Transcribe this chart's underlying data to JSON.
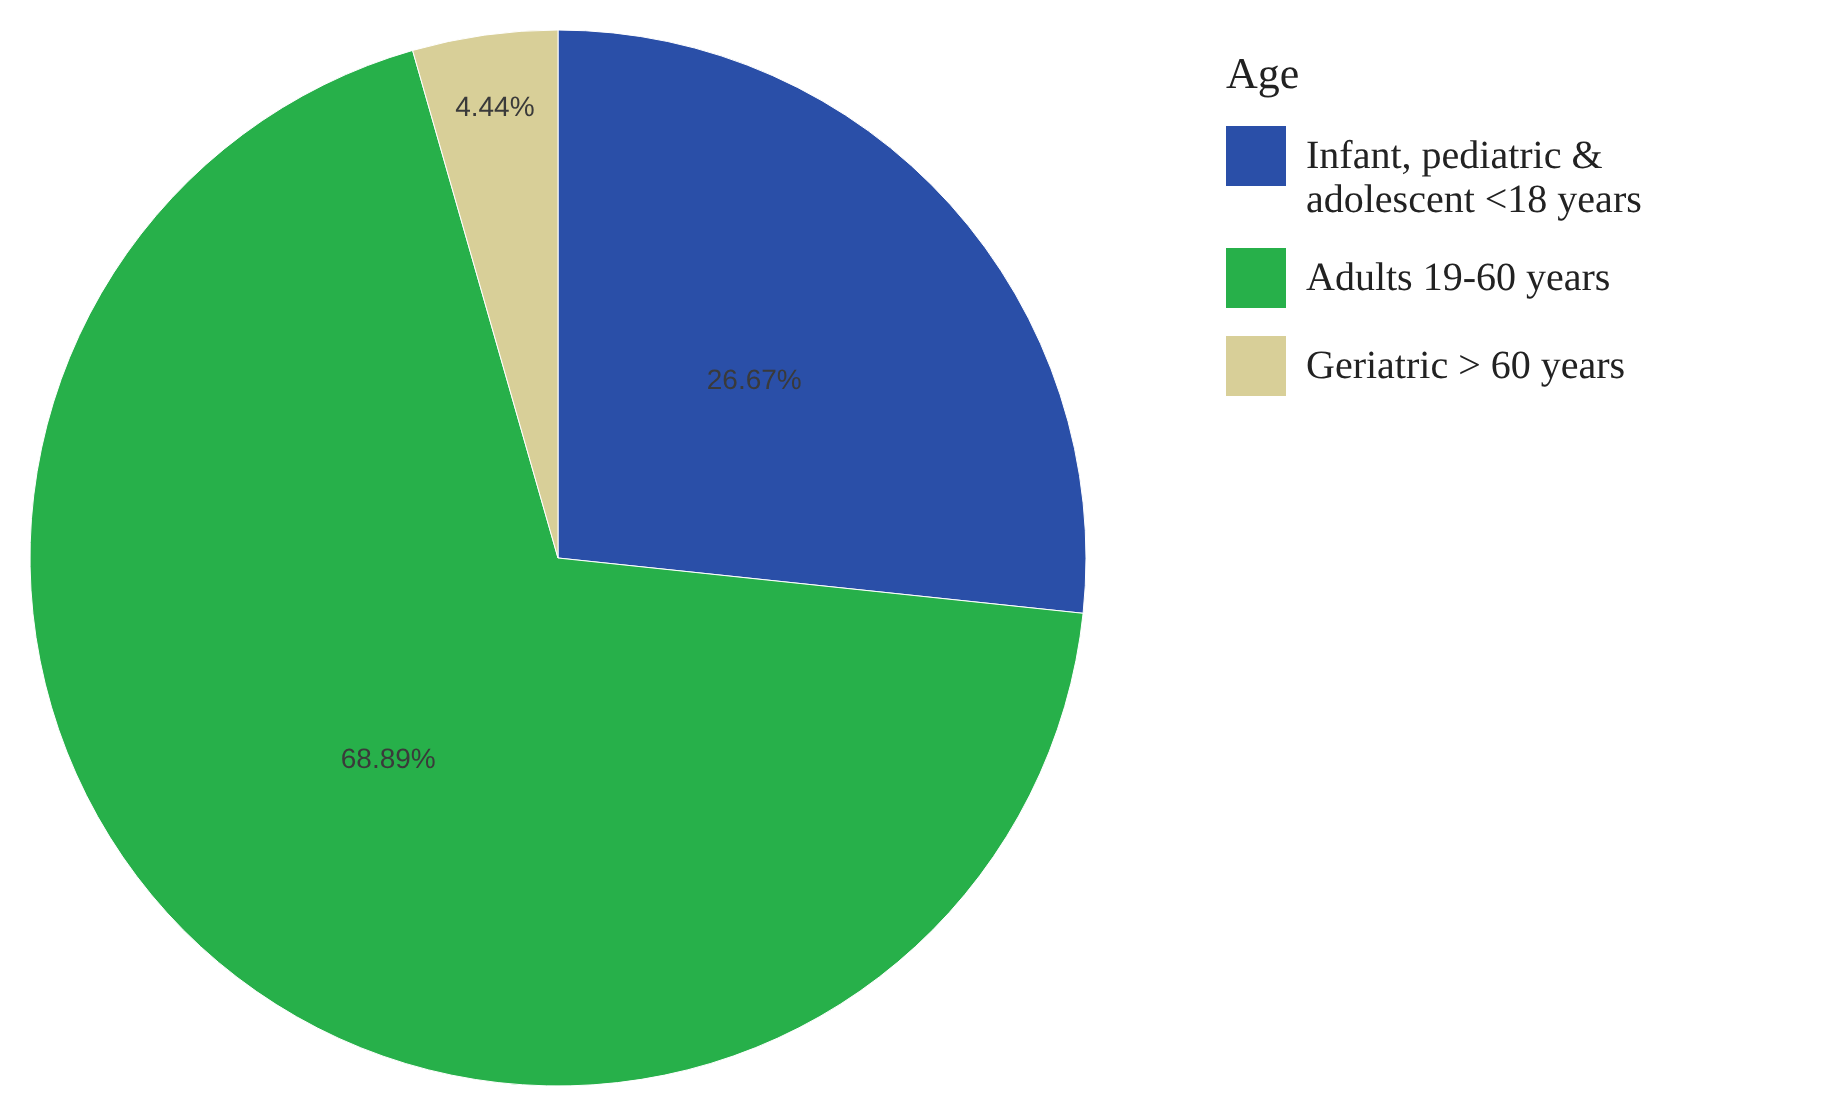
{
  "chart_data": {
    "type": "pie",
    "legend_title": "Age",
    "categories": [
      "Infant, pediatric & adolescent <18 years",
      "Adults 19-60 years",
      "Geriatric > 60 years"
    ],
    "values": [
      26.67,
      68.89,
      4.44
    ],
    "colors": [
      "#2a4fa8",
      "#27b04a",
      "#d8cf98"
    ],
    "value_labels": [
      "26.67%",
      "68.89%",
      "4.44%"
    ],
    "legend": "top right"
  }
}
